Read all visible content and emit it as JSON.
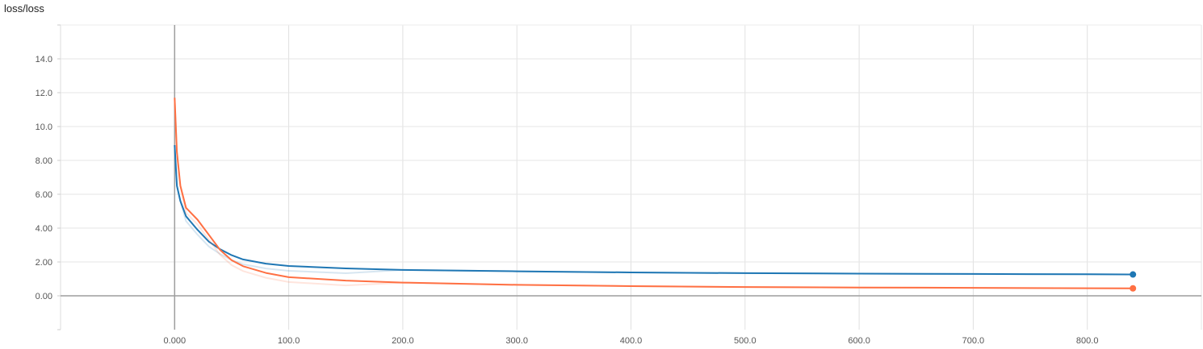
{
  "chart_data": {
    "type": "line",
    "title": "loss/loss",
    "xlabel": "",
    "ylabel": "",
    "xlim": [
      -100,
      900
    ],
    "ylim": [
      -2,
      16
    ],
    "x_ticks": [
      0,
      100,
      200,
      300,
      400,
      500,
      600,
      700,
      800
    ],
    "x_tick_labels": [
      "0.000",
      "100.0",
      "200.0",
      "300.0",
      "400.0",
      "500.0",
      "600.0",
      "700.0",
      "800.0"
    ],
    "y_ticks": [
      0,
      2,
      4,
      6,
      8,
      10,
      12,
      14
    ],
    "y_tick_labels": [
      "0.00",
      "2.00",
      "4.00",
      "6.00",
      "8.00",
      "10.0",
      "12.0",
      "14.0"
    ],
    "grid": true,
    "series": [
      {
        "color": "#1f77b4",
        "x": [
          0,
          2,
          5,
          10,
          20,
          30,
          40,
          50,
          60,
          80,
          100,
          150,
          200,
          300,
          400,
          500,
          600,
          700,
          800,
          840
        ],
        "values": [
          8.9,
          6.5,
          5.6,
          4.7,
          3.9,
          3.2,
          2.75,
          2.4,
          2.15,
          1.9,
          1.76,
          1.62,
          1.53,
          1.45,
          1.38,
          1.34,
          1.31,
          1.29,
          1.27,
          1.26
        ]
      },
      {
        "color": "#ff7043",
        "x": [
          0,
          2,
          5,
          10,
          20,
          30,
          40,
          50,
          60,
          80,
          100,
          150,
          200,
          300,
          400,
          500,
          600,
          700,
          800,
          840
        ],
        "values": [
          11.7,
          8.5,
          6.5,
          5.2,
          4.5,
          3.6,
          2.7,
          2.1,
          1.75,
          1.35,
          1.1,
          0.9,
          0.78,
          0.65,
          0.57,
          0.52,
          0.49,
          0.47,
          0.45,
          0.44
        ]
      }
    ]
  }
}
